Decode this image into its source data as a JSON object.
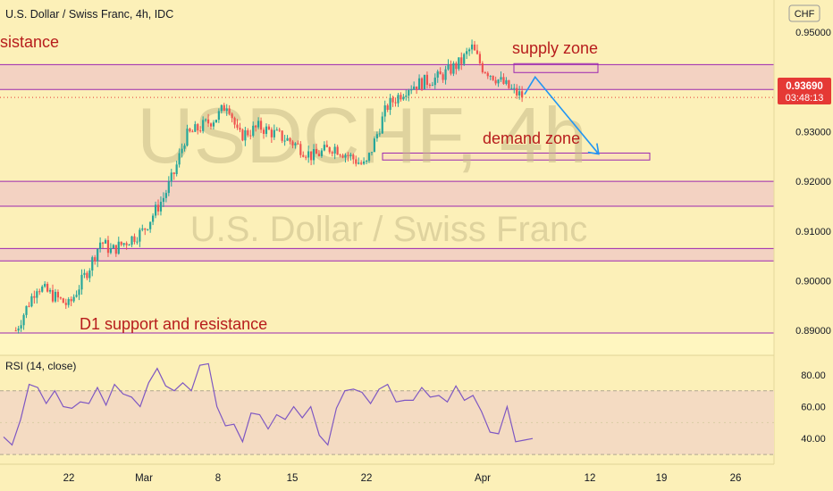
{
  "header": {
    "title": "U.S. Dollar / Swiss Franc, 4h, IDC",
    "currency_badge": "CHF"
  },
  "watermark": {
    "symbol": "USDCHF, 4h",
    "name": "U.S. Dollar / Swiss Franc"
  },
  "price_tag": {
    "value": "0.93690",
    "countdown": "03:48:13"
  },
  "annotations": {
    "resistance": "sistance",
    "supply": "supply zone",
    "demand": "demand zone",
    "d1": "D1 support and resistance"
  },
  "colors": {
    "background": "#fcf0b8",
    "up_candle": "#26a69a",
    "down_candle": "#ef5350",
    "zone_fill": "#f3d2c2",
    "zone_line": "#9c27b0",
    "d1_fill": "#fff6c0",
    "arrow": "#2196f3",
    "annotation_text": "#b71c1c",
    "rsi_line": "#7e57c2",
    "rsi_band": "#f4dbc2"
  },
  "chart_data": {
    "type": "candlestick",
    "title": "U.S. Dollar / Swiss Franc, 4h, IDC",
    "price_axis": {
      "min": 0.885,
      "max": 0.9565,
      "ticks": [
        "0.95000",
        "0.94000",
        "0.93000",
        "0.92000",
        "0.91000",
        "0.90000",
        "0.89000"
      ],
      "last_price": 0.9369
    },
    "x_axis": {
      "ticks": [
        "22",
        "Mar",
        "8",
        "15",
        "22",
        "Apr",
        "5",
        "12",
        "19",
        "26"
      ]
    },
    "series_summary": [
      {
        "date": "2021-02-17",
        "close": 0.89
      },
      {
        "date": "2021-02-19",
        "close": 0.899
      },
      {
        "date": "2021-02-22",
        "close": 0.895
      },
      {
        "date": "2021-02-24",
        "close": 0.903
      },
      {
        "date": "2021-02-25",
        "close": 0.908
      },
      {
        "date": "2021-02-26",
        "close": 0.906
      },
      {
        "date": "2021-03-01",
        "close": 0.91
      },
      {
        "date": "2021-03-03",
        "close": 0.917
      },
      {
        "date": "2021-03-04",
        "close": 0.922
      },
      {
        "date": "2021-03-05",
        "close": 0.929
      },
      {
        "date": "2021-03-08",
        "close": 0.933
      },
      {
        "date": "2021-03-09",
        "close": 0.936
      },
      {
        "date": "2021-03-10",
        "close": 0.929
      },
      {
        "date": "2021-03-12",
        "close": 0.931
      },
      {
        "date": "2021-03-15",
        "close": 0.928
      },
      {
        "date": "2021-03-17",
        "close": 0.925
      },
      {
        "date": "2021-03-19",
        "close": 0.927
      },
      {
        "date": "2021-03-22",
        "close": 0.923
      },
      {
        "date": "2021-03-24",
        "close": 0.935
      },
      {
        "date": "2021-03-26",
        "close": 0.939
      },
      {
        "date": "2021-03-29",
        "close": 0.941
      },
      {
        "date": "2021-03-31",
        "close": 0.944
      },
      {
        "date": "2021-04-01",
        "close": 0.947
      },
      {
        "date": "2021-04-02",
        "close": 0.943
      },
      {
        "date": "2021-04-05",
        "close": 0.938
      },
      {
        "date": "2021-04-06",
        "close": 0.9369
      }
    ],
    "zones": [
      {
        "label": "sistance",
        "from": 0.9385,
        "to": 0.9435
      },
      {
        "label": "supply zone",
        "from": 0.9419,
        "to": 0.9437
      },
      {
        "label": "demand zone",
        "from": 0.9243,
        "to": 0.9257
      },
      {
        "label": "",
        "from": 0.915,
        "to": 0.92
      },
      {
        "label": "",
        "from": 0.904,
        "to": 0.9065
      },
      {
        "label": "D1 support and resistance",
        "from": 0.885,
        "to": 0.8895
      }
    ],
    "projection": [
      {
        "date": "2021-04-06",
        "price": 0.9375
      },
      {
        "date": "2021-04-07",
        "price": 0.941
      },
      {
        "date": "2021-04-13",
        "price": 0.9255
      }
    ]
  },
  "rsi": {
    "label": "RSI (14, close)",
    "ticks": [
      "80.00",
      "60.00",
      "40.00"
    ],
    "band": [
      30,
      70
    ],
    "range": [
      25,
      90
    ],
    "values": [
      41,
      36,
      52,
      74,
      72,
      62,
      70,
      60,
      59,
      63,
      62,
      72,
      61,
      74,
      68,
      66,
      60,
      75,
      84,
      73,
      70,
      75,
      70,
      86,
      87,
      60,
      48,
      49,
      38,
      56,
      55,
      46,
      55,
      52,
      60,
      53,
      60,
      42,
      36,
      59,
      70,
      71,
      69,
      62,
      71,
      74,
      63,
      64,
      64,
      72,
      66,
      67,
      63,
      73,
      64,
      67,
      57,
      44,
      43,
      60,
      38,
      39,
      40
    ]
  }
}
